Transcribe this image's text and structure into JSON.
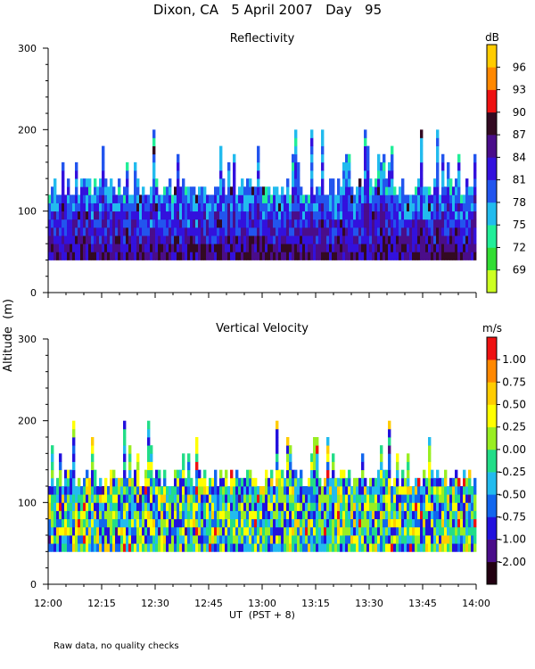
{
  "title": "Dixon, CA   5 April 2007   Day   95",
  "footnote": "Raw data, no quality checks",
  "shared_ylabel": "Altitude  (m)",
  "shared_xlabel": "UT  (PST + 8)",
  "chart_data": [
    {
      "type": "heatmap",
      "title": "Reflectivity",
      "xlabel": "UT  (PST + 8)",
      "ylabel": "Altitude  (m)",
      "x_ticks": [
        "12:00",
        "12:15",
        "12:30",
        "12:45",
        "13:00",
        "13:15",
        "13:30",
        "13:45",
        "14:00"
      ],
      "x_range_minutes": [
        0,
        120
      ],
      "y_ticks": [
        0,
        100,
        200,
        300
      ],
      "ylim": [
        0,
        300
      ],
      "data_altitude_range": [
        40,
        200
      ],
      "typical_echo_top": 140,
      "colorbar": {
        "unit": "dB",
        "levels": [
          69,
          72,
          75,
          78,
          81,
          84,
          87,
          90,
          93,
          96
        ],
        "colors": [
          "#ccff22",
          "#33dd33",
          "#22ee99",
          "#22bbee",
          "#2255ee",
          "#3311dd",
          "#4a0d8a",
          "#330a22",
          "#ee1111",
          "#ff8800",
          "#ffcc00"
        ]
      }
    },
    {
      "type": "heatmap",
      "title": "Vertical Velocity",
      "xlabel": "UT  (PST + 8)",
      "ylabel": "Altitude  (m)",
      "x_ticks": [
        "12:00",
        "12:15",
        "12:30",
        "12:45",
        "13:00",
        "13:15",
        "13:30",
        "13:45",
        "14:00"
      ],
      "x_range_minutes": [
        0,
        120
      ],
      "y_ticks": [
        0,
        100,
        200,
        300
      ],
      "ylim": [
        0,
        300
      ],
      "data_altitude_range": [
        40,
        200
      ],
      "typical_echo_top": 140,
      "colorbar": {
        "unit": "m/s",
        "levels": [
          "-2.00",
          "-1.00",
          "-0.75",
          "-0.50",
          "-0.25",
          "0.00",
          "0.25",
          "0.50",
          "0.75",
          "1.00"
        ],
        "colors": [
          "#220011",
          "#4a0d8a",
          "#2211dd",
          "#1166ee",
          "#22bbee",
          "#22dd88",
          "#99ee22",
          "#ffff00",
          "#ffcc00",
          "#ff8800",
          "#ee1111"
        ]
      }
    }
  ],
  "colors": {
    "axis": "#000000",
    "background": "#ffffff"
  }
}
